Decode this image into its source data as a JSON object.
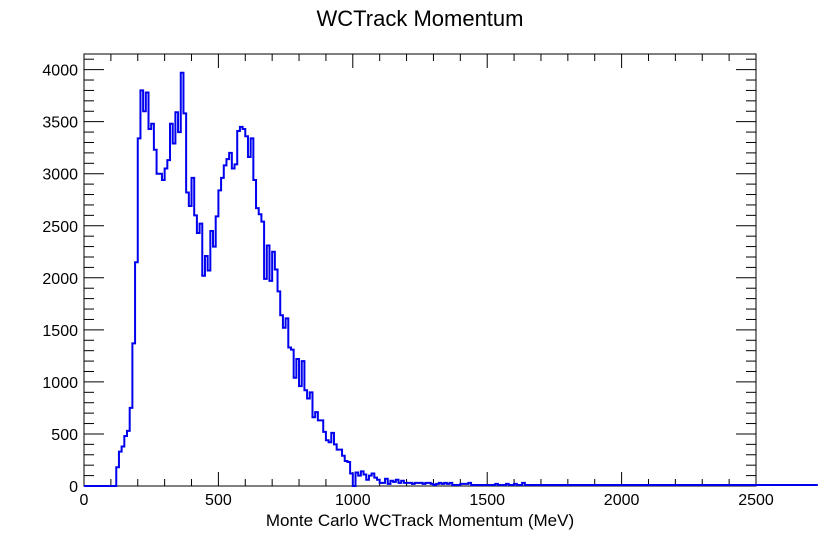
{
  "chart_data": {
    "type": "bar",
    "style": "histogram-step",
    "title": "WCTrack Momentum",
    "xlabel": "Monte Carlo WCTrack Momentum (MeV)",
    "ylabel": "",
    "xlim": [
      0,
      2500
    ],
    "ylim": [
      0,
      4150
    ],
    "x_ticks": [
      "0",
      "500",
      "1000",
      "1500",
      "2000",
      "2500"
    ],
    "y_ticks": [
      "0",
      "500",
      "1000",
      "1500",
      "2000",
      "2500",
      "3000",
      "3500",
      "4000"
    ],
    "grid": false,
    "bin_width": 10,
    "x_start": 0,
    "values": [
      0,
      0,
      0,
      0,
      0,
      0,
      0,
      0,
      0,
      0,
      0,
      0,
      180,
      330,
      380,
      480,
      530,
      750,
      1370,
      2150,
      3340,
      3800,
      3600,
      3780,
      3430,
      3480,
      3230,
      3000,
      3000,
      2940,
      3050,
      3130,
      3480,
      3290,
      3590,
      3400,
      3970,
      3580,
      2820,
      2690,
      2960,
      2600,
      2430,
      2520,
      2020,
      2210,
      2070,
      2450,
      2300,
      2590,
      2840,
      2960,
      3080,
      3140,
      3200,
      3050,
      3090,
      3410,
      3450,
      3430,
      3360,
      3160,
      3340,
      2940,
      2670,
      2610,
      2540,
      1990,
      2310,
      1970,
      2250,
      2080,
      1870,
      1640,
      1520,
      1610,
      1330,
      1310,
      1040,
      1220,
      960,
      1200,
      920,
      840,
      900,
      660,
      710,
      630,
      630,
      520,
      440,
      420,
      510,
      400,
      350,
      350,
      290,
      240,
      230,
      120,
      0,
      130,
      100,
      140,
      110,
      60,
      100,
      120,
      80,
      60,
      30,
      30,
      70,
      20,
      50,
      40,
      60,
      30,
      50,
      30,
      30,
      30,
      20,
      30,
      30,
      30,
      20,
      30,
      30,
      20,
      10,
      20,
      30,
      20,
      30,
      20,
      30,
      10,
      10,
      10,
      20,
      20,
      20,
      30,
      10,
      10,
      10,
      10,
      10,
      10,
      10,
      10,
      10,
      20,
      10,
      10,
      10,
      20,
      10,
      10,
      20,
      10,
      10,
      30,
      10,
      10,
      10,
      10,
      10,
      10,
      10,
      10,
      10,
      10,
      10,
      10,
      10,
      10,
      10,
      10,
      10,
      10,
      10,
      10,
      10,
      10,
      10,
      10,
      10,
      10,
      10,
      10,
      10,
      10,
      10,
      10,
      10,
      10,
      10,
      10,
      10,
      10,
      10,
      10,
      10,
      10,
      10,
      10,
      10,
      10,
      10,
      10,
      10,
      10,
      10,
      10,
      10,
      10,
      10,
      10,
      10,
      10,
      10,
      10,
      10,
      10,
      10,
      10,
      10,
      10,
      10,
      10,
      10,
      10,
      10,
      10,
      10,
      10,
      10,
      10,
      10,
      10,
      10,
      10,
      10,
      10,
      10,
      10,
      10,
      10,
      10,
      10,
      10,
      10,
      10,
      10,
      10,
      10,
      10,
      10,
      10,
      10,
      10,
      10,
      10,
      10,
      10,
      10,
      10,
      10,
      10,
      10,
      10
    ],
    "series_color": "#0000ee",
    "axis_color": "#000000"
  }
}
